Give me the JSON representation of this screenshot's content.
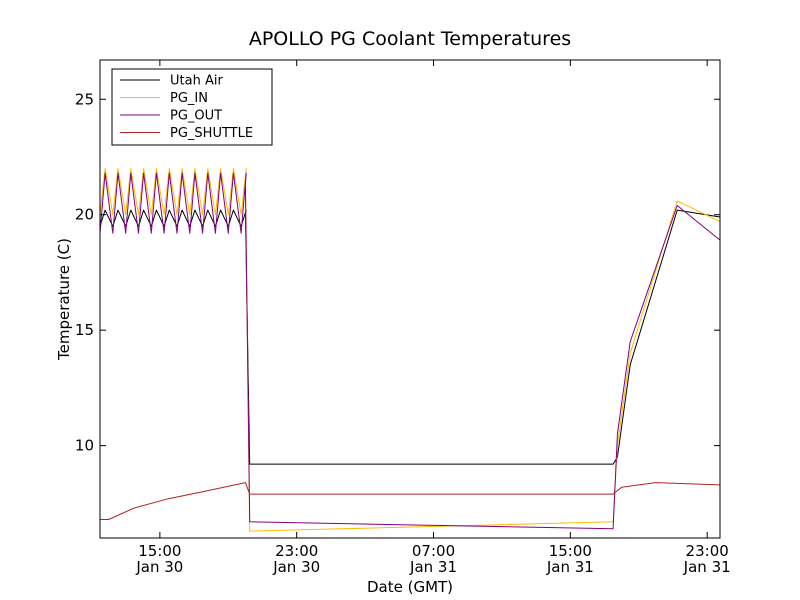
{
  "chart_data": {
    "type": "line",
    "title": "APOLLO PG Coolant Temperatures",
    "xlabel": "Date (GMT)",
    "ylabel": "Temperature (C)",
    "ylim": [
      6.0,
      26.7
    ],
    "xlim": [
      "Jan 30 11:30",
      "Jan 31 23:45"
    ],
    "x_ticks": [
      {
        "time": "Jan 30 15:00",
        "line1": "15:00",
        "line2": "Jan 30"
      },
      {
        "time": "Jan 30 23:00",
        "line1": "23:00",
        "line2": "Jan 30"
      },
      {
        "time": "Jan 31 07:00",
        "line1": "07:00",
        "line2": "Jan 31"
      },
      {
        "time": "Jan 31 15:00",
        "line1": "15:00",
        "line2": "Jan 31"
      },
      {
        "time": "Jan 31 23:00",
        "line1": "23:00",
        "line2": "Jan 31"
      }
    ],
    "y_ticks": [
      10,
      15,
      20,
      25
    ],
    "grid": false,
    "legend_position": "top-left",
    "series": [
      {
        "name": "Utah Air",
        "color": "#000000",
        "pattern": {
          "start": "Jan 30 11:30",
          "end": "Jan 30 20:00",
          "low": 19.5,
          "high": 20.2,
          "period_hours": 0.75
        },
        "points": [
          [
            "Jan 30 20:00",
            20.1
          ],
          [
            "Jan 30 20:15",
            9.2
          ],
          [
            "Jan 31 17:30",
            9.2
          ],
          [
            "Jan 31 17:45",
            9.5
          ],
          [
            "Jan 31 18:30",
            13.5
          ],
          [
            "Jan 31 21:15",
            20.2
          ],
          [
            "Jan 31 23:45",
            19.9
          ]
        ]
      },
      {
        "name": "PG_IN",
        "color": "#ffbb00",
        "pattern": {
          "start": "Jan 30 11:30",
          "end": "Jan 30 20:00",
          "low": 20.0,
          "high": 22.0,
          "period_hours": 0.75
        },
        "points": [
          [
            "Jan 30 20:00",
            21.5
          ],
          [
            "Jan 30 20:15",
            6.3
          ],
          [
            "Jan 31 17:30",
            6.7
          ],
          [
            "Jan 31 17:45",
            10.0
          ],
          [
            "Jan 31 18:30",
            14.0
          ],
          [
            "Jan 31 21:15",
            20.6
          ],
          [
            "Jan 31 23:45",
            19.7
          ]
        ]
      },
      {
        "name": "PG_OUT",
        "color": "#800080",
        "pattern": {
          "start": "Jan 30 11:30",
          "end": "Jan 30 20:00",
          "low": 19.2,
          "high": 21.8,
          "period_hours": 0.75
        },
        "points": [
          [
            "Jan 30 20:00",
            21.3
          ],
          [
            "Jan 30 20:15",
            6.7
          ],
          [
            "Jan 31 17:30",
            6.4
          ],
          [
            "Jan 31 17:45",
            10.5
          ],
          [
            "Jan 31 18:30",
            14.5
          ],
          [
            "Jan 31 21:15",
            20.4
          ],
          [
            "Jan 31 23:45",
            18.9
          ]
        ]
      },
      {
        "name": "PG_SHUTTLE",
        "color": "#b22222",
        "points": [
          [
            "Jan 30 11:30",
            6.8
          ],
          [
            "Jan 30 12:00",
            6.8
          ],
          [
            "Jan 30 13:30",
            7.3
          ],
          [
            "Jan 30 15:30",
            7.7
          ],
          [
            "Jan 30 17:30",
            8.0
          ],
          [
            "Jan 30 20:00",
            8.4
          ],
          [
            "Jan 30 20:15",
            7.9
          ],
          [
            "Jan 31 17:30",
            7.9
          ],
          [
            "Jan 31 18:00",
            8.2
          ],
          [
            "Jan 31 20:00",
            8.4
          ],
          [
            "Jan 31 23:45",
            8.3
          ]
        ]
      }
    ]
  }
}
